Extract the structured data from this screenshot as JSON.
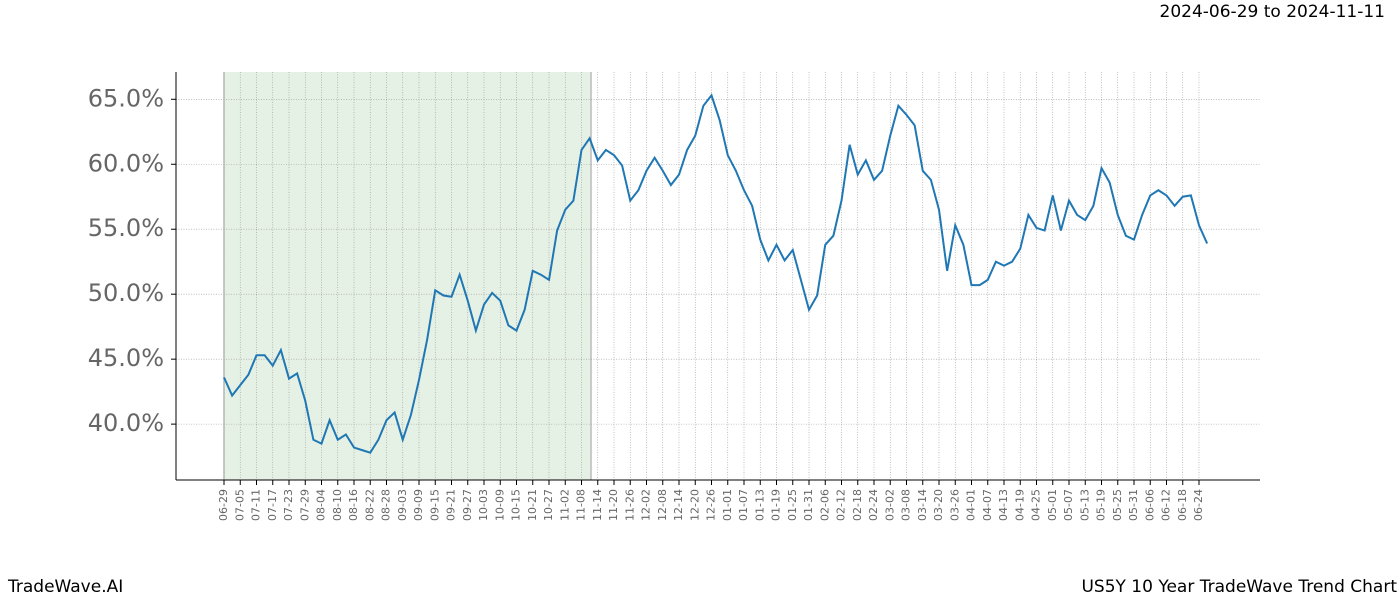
{
  "header": "2024-06-29 to 2024-11-11",
  "footer_left": "TradeWave.AI",
  "footer_right": "US5Y 10 Year TradeWave Trend Chart",
  "chart_data": {
    "type": "line",
    "categories": [
      "06-29",
      null,
      "07-05",
      null,
      "07-11",
      null,
      "07-17",
      null,
      "07-23",
      null,
      "07-29",
      null,
      "08-04",
      null,
      "08-10",
      null,
      "08-16",
      null,
      "08-22",
      null,
      "08-28",
      null,
      "09-03",
      null,
      "09-09",
      null,
      "09-15",
      null,
      "09-21",
      null,
      "09-27",
      null,
      "10-03",
      null,
      "10-09",
      null,
      "10-15",
      null,
      "10-21",
      null,
      "10-27",
      null,
      "11-02",
      null,
      "11-08",
      null,
      "11-14",
      null,
      "11-20",
      null,
      "11-26",
      null,
      "12-02",
      null,
      "12-08",
      null,
      "12-14",
      null,
      "12-20",
      null,
      "12-26",
      null,
      "01-01",
      null,
      "01-07",
      null,
      "01-13",
      null,
      "01-19",
      null,
      "01-25",
      null,
      "01-31",
      null,
      "02-06",
      null,
      "02-12",
      null,
      "02-18",
      null,
      "02-24",
      null,
      "03-02",
      null,
      "03-08",
      null,
      "03-14",
      null,
      "03-20",
      null,
      "03-26",
      null,
      "04-01",
      null,
      "04-07",
      null,
      "04-13",
      null,
      "04-19",
      null,
      "04-25",
      null,
      "05-01",
      null,
      "05-07",
      null,
      "05-13",
      null,
      "05-19",
      null,
      "05-25",
      null,
      "05-31",
      null,
      "06-06",
      null,
      "06-12",
      null,
      "06-18",
      null,
      "06-24",
      null
    ],
    "series": [
      {
        "color": "#1f77b4",
        "values": [
          43.6,
          42.2,
          43.0,
          43.8,
          45.3,
          45.3,
          44.5,
          45.7,
          43.5,
          43.9,
          41.8,
          38.8,
          38.5,
          40.3,
          38.8,
          39.2,
          38.2,
          38.0,
          37.8,
          38.8,
          40.3,
          40.9,
          38.8,
          40.7,
          43.4,
          46.5,
          50.3,
          49.9,
          49.8,
          51.5,
          49.5,
          47.2,
          49.2,
          50.1,
          49.5,
          47.6,
          47.2,
          48.8,
          51.8,
          51.5,
          51.1,
          54.9,
          56.5,
          57.2,
          61.1,
          62.0,
          60.3,
          61.1,
          60.7,
          59.9,
          57.2,
          58.0,
          59.5,
          60.5,
          59.5,
          58.4,
          59.2,
          61.1,
          62.2,
          64.5,
          65.3,
          63.4,
          60.7,
          59.5,
          58.0,
          56.8,
          54.2,
          52.6,
          53.8,
          52.6,
          53.4,
          51.1,
          48.8,
          49.9,
          53.8,
          54.5,
          57.2,
          61.5,
          59.2,
          60.3,
          58.8,
          59.5,
          62.2,
          64.5,
          63.8,
          63.0,
          59.5,
          58.8,
          56.5,
          51.8,
          55.3,
          53.8,
          50.7,
          50.7,
          51.1,
          52.5,
          52.2,
          52.5,
          53.5,
          56.1,
          55.1,
          54.9,
          57.6,
          54.9,
          57.2,
          56.1,
          55.7,
          56.8,
          59.7,
          58.6,
          56.1,
          54.5,
          54.2,
          56.1,
          57.6,
          58.0,
          57.6,
          56.8,
          57.5,
          57.6,
          55.3,
          53.9
        ]
      }
    ],
    "ylim": [
      35.7,
      67.1
    ],
    "yticks": [
      {
        "value": 40,
        "label": "40.0%"
      },
      {
        "value": 45,
        "label": "45.0%"
      },
      {
        "value": 50,
        "label": "50.0%"
      },
      {
        "value": 55,
        "label": "55.0%"
      },
      {
        "value": 60,
        "label": "60.0%"
      },
      {
        "value": 65,
        "label": "65.0%"
      }
    ],
    "grid": true
  }
}
